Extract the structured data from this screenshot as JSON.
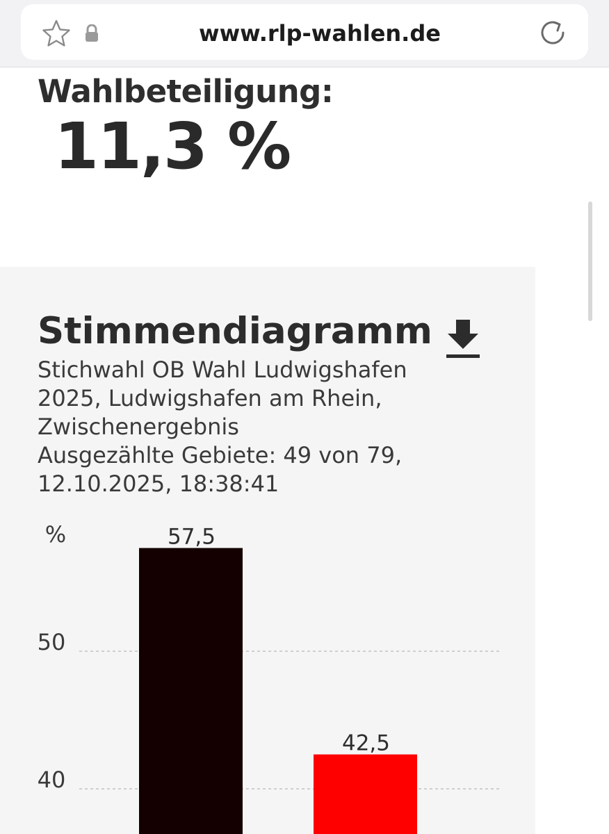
{
  "browser": {
    "url": "www.rlp-wahlen.de"
  },
  "turnout": {
    "label": "Wahlbeteiligung:",
    "value": "11,3 %"
  },
  "chart": {
    "title": "Stimmendiagramm",
    "subtitle_lines": [
      "Stichwahl OB Wahl Ludwigshafen",
      "2025, Ludwigshafen am Rhein,",
      "Zwischenergebnis",
      "Ausgezählte Gebiete: 49 von 79,",
      "12.10.2025, 18:38:41"
    ]
  },
  "chart_data": {
    "type": "bar",
    "ylabel": "%",
    "ylim": [
      30,
      60
    ],
    "yticks": [
      "50",
      "40"
    ],
    "grid": true,
    "values": [
      57.5,
      42.5
    ],
    "value_labels": [
      "57,5",
      "42,5"
    ],
    "colors": [
      "#140000",
      "#ff0000"
    ]
  }
}
